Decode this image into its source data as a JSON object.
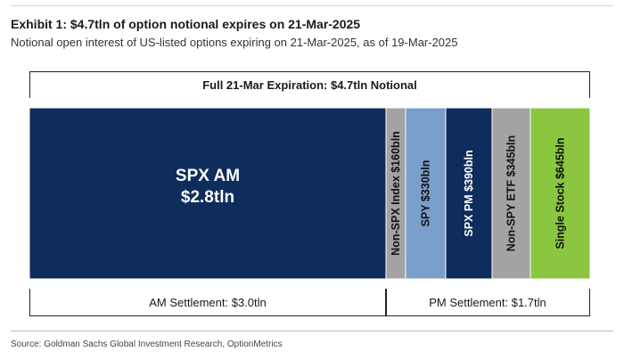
{
  "title": "Exhibit 1: $4.7tln of option notional expires on 21-Mar-2025",
  "subtitle": "Notional open interest of US-listed options expiring on 21-Mar-2025, as of 19-Mar-2025",
  "top_bracket": {
    "label": "Full 21-Mar Expiration: $4.7tln Notional"
  },
  "bottom_brackets": [
    {
      "label": "AM Settlement: $3.0tln"
    },
    {
      "label": "PM Settlement: $1.7tln"
    }
  ],
  "source": "Source: Goldman Sachs Global Investment Research, OptionMetrics",
  "chart_data": {
    "type": "bar",
    "orientation": "stacked-horizontal",
    "units": "USD billions",
    "total": 4700,
    "segments": [
      {
        "label_lines": [
          "SPX AM",
          "$2.8tln"
        ],
        "value": 2800,
        "color": "#0e2d5c",
        "text_color": "#ffffff",
        "orientation": "horizontal",
        "settlement": "AM"
      },
      {
        "label_lines": [
          "Non-SPX Index $160bln"
        ],
        "value": 160,
        "color": "#a3a3a3",
        "text_color": "#111111",
        "orientation": "vertical",
        "settlement": "AM"
      },
      {
        "label_lines": [
          "SPY $330bln"
        ],
        "value": 330,
        "color": "#7a9fcc",
        "text_color": "#111111",
        "orientation": "vertical",
        "settlement": "PM"
      },
      {
        "label_lines": [
          "SPX PM $390bln"
        ],
        "value": 390,
        "color": "#0e2d5c",
        "text_color": "#ffffff",
        "orientation": "vertical",
        "settlement": "PM"
      },
      {
        "label_lines": [
          "Non-SPY ETF $345bln"
        ],
        "value": 345,
        "color": "#a3a3a3",
        "text_color": "#111111",
        "orientation": "vertical",
        "settlement": "PM"
      },
      {
        "label_lines": [
          "Single Stock $645bln"
        ],
        "value": 645,
        "color": "#8ac640",
        "text_color": "#111111",
        "orientation": "vertical",
        "settlement": "PM"
      }
    ]
  }
}
